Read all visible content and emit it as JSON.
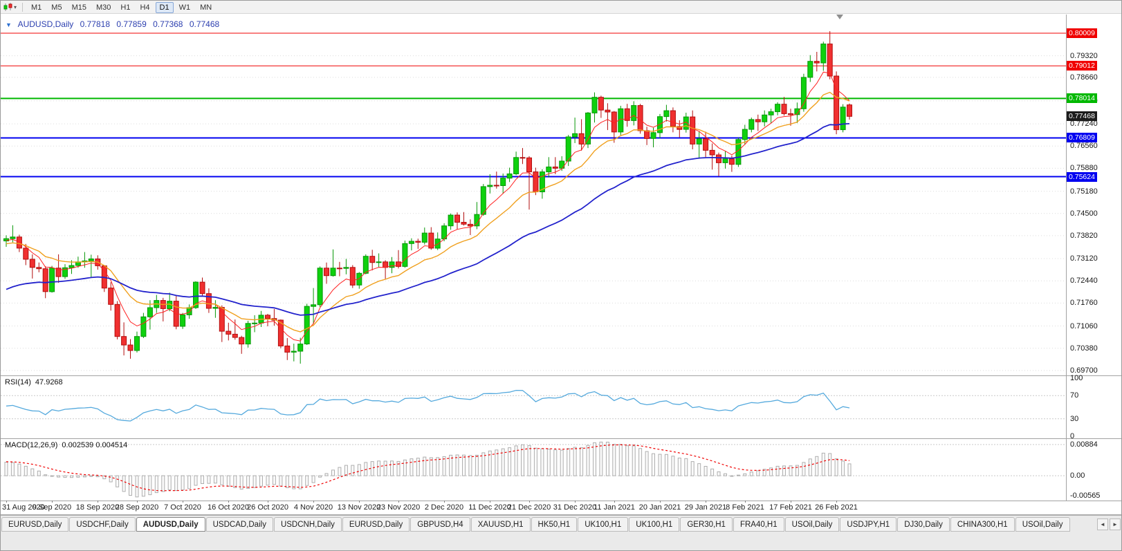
{
  "toolbar": {
    "timeframes": [
      "M1",
      "M5",
      "M15",
      "M30",
      "H1",
      "H4",
      "D1",
      "W1",
      "MN"
    ],
    "active_timeframe": "D1",
    "menu_caret": "▾"
  },
  "chart_header": {
    "one_click": "▼",
    "symbol_period": "AUDUSD,Daily",
    "open": "0.77818",
    "high": "0.77859",
    "low": "0.77368",
    "close": "0.77468"
  },
  "price_axis": {
    "grid_labels": [
      {
        "text": "0.79320",
        "value": 0.7932
      },
      {
        "text": "0.78660",
        "value": 0.7866
      },
      {
        "text": "0.77940",
        "value": 0.7794
      },
      {
        "text": "0.77240",
        "value": 0.7724
      },
      {
        "text": "0.76560",
        "value": 0.7656
      },
      {
        "text": "0.75880",
        "value": 0.7588
      },
      {
        "text": "0.75180",
        "value": 0.7518
      },
      {
        "text": "0.74500",
        "value": 0.745
      },
      {
        "text": "0.73820",
        "value": 0.7382
      },
      {
        "text": "0.73120",
        "value": 0.7312
      },
      {
        "text": "0.72440",
        "value": 0.7244
      },
      {
        "text": "0.71760",
        "value": 0.7176
      },
      {
        "text": "0.71060",
        "value": 0.7106
      },
      {
        "text": "0.70380",
        "value": 0.7038
      },
      {
        "text": "0.69700",
        "value": 0.697
      }
    ],
    "badges": [
      {
        "text": "0.80009",
        "value": 0.80009,
        "bg": "#f00000"
      },
      {
        "text": "0.79012",
        "value": 0.79012,
        "bg": "#f00000"
      },
      {
        "text": "0.78014",
        "value": 0.78014,
        "bg": "#00b800"
      },
      {
        "text": "0.77468",
        "value": 0.77468,
        "bg": "#1c1c1c"
      },
      {
        "text": "0.76809",
        "value": 0.76809,
        "bg": "#0000f0"
      },
      {
        "text": "0.75624",
        "value": 0.75624,
        "bg": "#0000f0"
      }
    ]
  },
  "hlines": [
    {
      "value": 0.80009,
      "color": "#f00000",
      "width": 1
    },
    {
      "value": 0.79012,
      "color": "#f00000",
      "width": 1
    },
    {
      "value": 0.78014,
      "color": "#00b800",
      "width": 2
    },
    {
      "value": 0.76809,
      "color": "#0000f0",
      "width": 2
    },
    {
      "value": 0.75624,
      "color": "#0000f0",
      "width": 2
    }
  ],
  "rsi_panel": {
    "name": "RSI(14)",
    "value": "47.9268",
    "line_color": "#54a9dd",
    "levels": [
      70,
      30
    ],
    "axis_labels": [
      {
        "text": "100",
        "value": 100
      },
      {
        "text": "70",
        "value": 70
      },
      {
        "text": "30",
        "value": 30
      },
      {
        "text": "0",
        "value": 0
      }
    ]
  },
  "macd_panel": {
    "name": "MACD(12,26,9)",
    "values": "0.002539 0.004514",
    "hist_color": "#aeaeae",
    "signal_color": "#f00000",
    "axis_labels": [
      {
        "text": "0.00884",
        "value": 0.00884
      },
      {
        "text": "0.00",
        "value": 0
      },
      {
        "text": "-0.00565",
        "value": -0.00565
      }
    ]
  },
  "date_axis": [
    {
      "text": "31 Aug 2020",
      "bar": 0
    },
    {
      "text": "9 Sep 2020",
      "bar": 7
    },
    {
      "text": "18 Sep 2020",
      "bar": 14
    },
    {
      "text": "28 Sep 2020",
      "bar": 20
    },
    {
      "text": "7 Oct 2020",
      "bar": 27
    },
    {
      "text": "16 Oct 2020",
      "bar": 34
    },
    {
      "text": "26 Oct 2020",
      "bar": 40
    },
    {
      "text": "4 Nov 2020",
      "bar": 47
    },
    {
      "text": "13 Nov 2020",
      "bar": 54
    },
    {
      "text": "23 Nov 2020",
      "bar": 60
    },
    {
      "text": "2 Dec 2020",
      "bar": 67
    },
    {
      "text": "11 Dec 2020",
      "bar": 74
    },
    {
      "text": "21 Dec 2020",
      "bar": 80
    },
    {
      "text": "31 Dec 2020",
      "bar": 87
    },
    {
      "text": "11 Jan 2021",
      "bar": 93
    },
    {
      "text": "20 Jan 2021",
      "bar": 100
    },
    {
      "text": "29 Jan 2021",
      "bar": 107
    },
    {
      "text": "8 Feb 2021",
      "bar": 113
    },
    {
      "text": "17 Feb 2021",
      "bar": 120
    },
    {
      "text": "26 Feb 2021",
      "bar": 127
    }
  ],
  "bottom_tabs": {
    "active_index": 2,
    "scroll_left": "◄",
    "scroll_right": "►",
    "tabs": [
      "EURUSD,Daily",
      "USDCHF,Daily",
      "AUDUSD,Daily",
      "USDCAD,Daily",
      "USDCNH,Daily",
      "EURUSD,Daily",
      "GBPUSD,H4",
      "XAUUSD,H1",
      "HK50,H1",
      "UK100,H1",
      "UK100,H1",
      "GER30,H1",
      "FRA40,H1",
      "USOil,Daily",
      "USDJPY,H1",
      "DJ30,Daily",
      "CHINA300,H1",
      "USOil,Daily"
    ]
  },
  "colors": {
    "candle_up": "#0ed10e",
    "candle_up_border": "#079707",
    "candle_down": "#f03030",
    "candle_down_border": "#b20d0d",
    "grid": "#dcdcdc",
    "background": "#ffffff"
  },
  "chart_data": {
    "type": "candlestick",
    "symbol": "AUDUSD",
    "timeframe": "Daily",
    "current_bar": {
      "open": 0.77818,
      "high": 0.77859,
      "low": 0.77368,
      "close": 0.77468
    },
    "y_range": [
      0.6955,
      0.8058
    ],
    "horizontal_levels": [
      0.80009,
      0.79012,
      0.78014,
      0.76809,
      0.75624
    ],
    "moving_averages": [
      {
        "period": 6,
        "type": "EMA",
        "color": "#ff2020",
        "width": 1,
        "seed": 0.7365
      },
      {
        "period": 14,
        "type": "EMA",
        "color": "#f0a01e",
        "width": 1.4,
        "seed": 0.7355
      },
      {
        "period": 40,
        "type": "EMA",
        "color": "#2222cc",
        "width": 1.8,
        "seed": 0.721
      }
    ],
    "indicators": {
      "rsi": {
        "period": 14,
        "current": 47.9268,
        "levels": [
          70,
          30
        ],
        "range": [
          0,
          100
        ]
      },
      "macd": {
        "fast": 12,
        "slow": 26,
        "signal": 9,
        "current_macd": 0.002539,
        "current_signal": 0.004514,
        "range": [
          -0.00565,
          0.00884
        ]
      }
    },
    "candles_ohlc": [
      [
        0.7366,
        0.7383,
        0.7348,
        0.7373
      ],
      [
        0.7373,
        0.7414,
        0.7362,
        0.7378
      ],
      [
        0.7378,
        0.7385,
        0.7332,
        0.7344
      ],
      [
        0.7344,
        0.7357,
        0.7292,
        0.731
      ],
      [
        0.731,
        0.7325,
        0.7251,
        0.7285
      ],
      [
        0.7285,
        0.73,
        0.727,
        0.7281
      ],
      [
        0.7281,
        0.7289,
        0.7191,
        0.7211
      ],
      [
        0.7211,
        0.729,
        0.7208,
        0.7283
      ],
      [
        0.7283,
        0.7325,
        0.7238,
        0.7257
      ],
      [
        0.7257,
        0.7295,
        0.725,
        0.7284
      ],
      [
        0.7284,
        0.7307,
        0.7265,
        0.7291
      ],
      [
        0.7291,
        0.7318,
        0.7284,
        0.7302
      ],
      [
        0.7302,
        0.7332,
        0.7284,
        0.7305
      ],
      [
        0.7305,
        0.7324,
        0.7255,
        0.7311
      ],
      [
        0.7311,
        0.7322,
        0.7278,
        0.729
      ],
      [
        0.729,
        0.7292,
        0.721,
        0.7222
      ],
      [
        0.7222,
        0.724,
        0.7153,
        0.7172
      ],
      [
        0.7172,
        0.7182,
        0.7065,
        0.7074
      ],
      [
        0.7074,
        0.7117,
        0.7016,
        0.7048
      ],
      [
        0.7048,
        0.7066,
        0.7006,
        0.7031
      ],
      [
        0.7031,
        0.7089,
        0.7025,
        0.7074
      ],
      [
        0.7074,
        0.7146,
        0.7069,
        0.7134
      ],
      [
        0.7134,
        0.7185,
        0.7095,
        0.7162
      ],
      [
        0.7162,
        0.7201,
        0.7146,
        0.7184
      ],
      [
        0.7184,
        0.7192,
        0.712,
        0.7159
      ],
      [
        0.7159,
        0.7208,
        0.7151,
        0.7182
      ],
      [
        0.7182,
        0.7198,
        0.7096,
        0.7105
      ],
      [
        0.7105,
        0.7146,
        0.7097,
        0.714
      ],
      [
        0.714,
        0.7172,
        0.7128,
        0.7162
      ],
      [
        0.7162,
        0.7243,
        0.7158,
        0.724
      ],
      [
        0.724,
        0.7254,
        0.7196,
        0.7205
      ],
      [
        0.7205,
        0.7221,
        0.7146,
        0.716
      ],
      [
        0.716,
        0.7185,
        0.7131,
        0.7163
      ],
      [
        0.7163,
        0.7169,
        0.7057,
        0.709
      ],
      [
        0.709,
        0.7116,
        0.7062,
        0.7081
      ],
      [
        0.7081,
        0.7126,
        0.7064,
        0.7071
      ],
      [
        0.7071,
        0.7076,
        0.7021,
        0.7051
      ],
      [
        0.7051,
        0.7122,
        0.704,
        0.7114
      ],
      [
        0.7114,
        0.7139,
        0.7087,
        0.7115
      ],
      [
        0.7115,
        0.7152,
        0.7103,
        0.7139
      ],
      [
        0.7139,
        0.7143,
        0.7105,
        0.7129
      ],
      [
        0.7129,
        0.7158,
        0.7107,
        0.7124
      ],
      [
        0.7124,
        0.7126,
        0.7038,
        0.7045
      ],
      [
        0.7045,
        0.7069,
        0.7002,
        0.7026
      ],
      [
        0.7026,
        0.7052,
        0.6998,
        0.7029
      ],
      [
        0.7029,
        0.707,
        0.6991,
        0.7051
      ],
      [
        0.7051,
        0.7174,
        0.7048,
        0.7166
      ],
      [
        0.7166,
        0.7222,
        0.7112,
        0.7171
      ],
      [
        0.7171,
        0.7288,
        0.7164,
        0.7283
      ],
      [
        0.7283,
        0.73,
        0.7235,
        0.726
      ],
      [
        0.726,
        0.734,
        0.7257,
        0.7283
      ],
      [
        0.7283,
        0.7302,
        0.7258,
        0.7282
      ],
      [
        0.7282,
        0.7311,
        0.7264,
        0.7285
      ],
      [
        0.7285,
        0.7292,
        0.7222,
        0.7231
      ],
      [
        0.7231,
        0.7271,
        0.722,
        0.7267
      ],
      [
        0.7267,
        0.7325,
        0.7264,
        0.7319
      ],
      [
        0.7319,
        0.7339,
        0.7276,
        0.73
      ],
      [
        0.73,
        0.7328,
        0.7285,
        0.7302
      ],
      [
        0.7302,
        0.7307,
        0.725,
        0.7285
      ],
      [
        0.7285,
        0.7317,
        0.7267,
        0.7302
      ],
      [
        0.7302,
        0.7338,
        0.7282,
        0.7288
      ],
      [
        0.7288,
        0.7367,
        0.7284,
        0.7358
      ],
      [
        0.7358,
        0.7374,
        0.7337,
        0.7365
      ],
      [
        0.7365,
        0.7373,
        0.7342,
        0.7362
      ],
      [
        0.7362,
        0.7407,
        0.7355,
        0.739
      ],
      [
        0.739,
        0.7408,
        0.7339,
        0.7344
      ],
      [
        0.7344,
        0.7392,
        0.7338,
        0.7372
      ],
      [
        0.7372,
        0.742,
        0.7365,
        0.7412
      ],
      [
        0.7412,
        0.745,
        0.74,
        0.7445
      ],
      [
        0.7445,
        0.7453,
        0.7401,
        0.7423
      ],
      [
        0.7423,
        0.7454,
        0.7413,
        0.7417
      ],
      [
        0.7417,
        0.7432,
        0.7384,
        0.7412
      ],
      [
        0.7412,
        0.7485,
        0.7402,
        0.7447
      ],
      [
        0.7447,
        0.754,
        0.7443,
        0.7532
      ],
      [
        0.7532,
        0.757,
        0.7511,
        0.7536
      ],
      [
        0.7536,
        0.7578,
        0.7526,
        0.7535
      ],
      [
        0.7535,
        0.7572,
        0.751,
        0.7558
      ],
      [
        0.7558,
        0.759,
        0.7546,
        0.7571
      ],
      [
        0.7571,
        0.7639,
        0.7567,
        0.7621
      ],
      [
        0.7621,
        0.765,
        0.7601,
        0.762
      ],
      [
        0.762,
        0.7625,
        0.7462,
        0.7577
      ],
      [
        0.7577,
        0.759,
        0.7506,
        0.7516
      ],
      [
        0.7516,
        0.7585,
        0.7495,
        0.7577
      ],
      [
        0.7577,
        0.7622,
        0.756,
        0.7592
      ],
      [
        0.7592,
        0.7622,
        0.757,
        0.7588
      ],
      [
        0.7588,
        0.7625,
        0.758,
        0.761
      ],
      [
        0.761,
        0.769,
        0.7595,
        0.7684
      ],
      [
        0.7684,
        0.7743,
        0.7665,
        0.7694
      ],
      [
        0.7694,
        0.7738,
        0.7642,
        0.7662
      ],
      [
        0.7662,
        0.776,
        0.765,
        0.7757
      ],
      [
        0.7757,
        0.782,
        0.7728,
        0.7805
      ],
      [
        0.7805,
        0.781,
        0.7742,
        0.7766
      ],
      [
        0.7766,
        0.7787,
        0.7705,
        0.776
      ],
      [
        0.776,
        0.7763,
        0.7666,
        0.7699
      ],
      [
        0.7699,
        0.7779,
        0.7689,
        0.777
      ],
      [
        0.777,
        0.7785,
        0.7715,
        0.7734
      ],
      [
        0.7734,
        0.7793,
        0.7719,
        0.778
      ],
      [
        0.778,
        0.7785,
        0.7694,
        0.7703
      ],
      [
        0.7703,
        0.7715,
        0.7659,
        0.7679
      ],
      [
        0.7679,
        0.7712,
        0.7652,
        0.7697
      ],
      [
        0.7697,
        0.7754,
        0.768,
        0.7746
      ],
      [
        0.7746,
        0.7782,
        0.7731,
        0.7764
      ],
      [
        0.7764,
        0.7774,
        0.7698,
        0.7716
      ],
      [
        0.7716,
        0.7735,
        0.7682,
        0.7707
      ],
      [
        0.7707,
        0.7758,
        0.7697,
        0.7745
      ],
      [
        0.7745,
        0.7765,
        0.7646,
        0.7662
      ],
      [
        0.7662,
        0.7702,
        0.7617,
        0.7678
      ],
      [
        0.7678,
        0.77,
        0.7622,
        0.7643
      ],
      [
        0.7643,
        0.7664,
        0.7584,
        0.7629
      ],
      [
        0.7629,
        0.7636,
        0.7564,
        0.7605
      ],
      [
        0.7605,
        0.764,
        0.7587,
        0.7617
      ],
      [
        0.7617,
        0.7627,
        0.7577,
        0.76
      ],
      [
        0.76,
        0.7682,
        0.7592,
        0.7676
      ],
      [
        0.7676,
        0.7721,
        0.766,
        0.7707
      ],
      [
        0.7707,
        0.7743,
        0.7698,
        0.7737
      ],
      [
        0.7737,
        0.7752,
        0.7702,
        0.773
      ],
      [
        0.773,
        0.7765,
        0.7716,
        0.7751
      ],
      [
        0.7751,
        0.777,
        0.7725,
        0.7761
      ],
      [
        0.7761,
        0.779,
        0.775,
        0.7784
      ],
      [
        0.7784,
        0.7806,
        0.7749,
        0.7755
      ],
      [
        0.7755,
        0.777,
        0.7718,
        0.7752
      ],
      [
        0.7752,
        0.7789,
        0.7726,
        0.777
      ],
      [
        0.777,
        0.7877,
        0.7761,
        0.7866
      ],
      [
        0.7866,
        0.7934,
        0.7852,
        0.7915
      ],
      [
        0.7915,
        0.7944,
        0.7884,
        0.791
      ],
      [
        0.791,
        0.7975,
        0.7886,
        0.7968
      ],
      [
        0.7968,
        0.8007,
        0.786,
        0.787
      ],
      [
        0.787,
        0.7884,
        0.7692,
        0.7706
      ],
      [
        0.7706,
        0.7784,
        0.7698,
        0.7775
      ],
      [
        0.77818,
        0.77859,
        0.77368,
        0.77468
      ]
    ]
  }
}
